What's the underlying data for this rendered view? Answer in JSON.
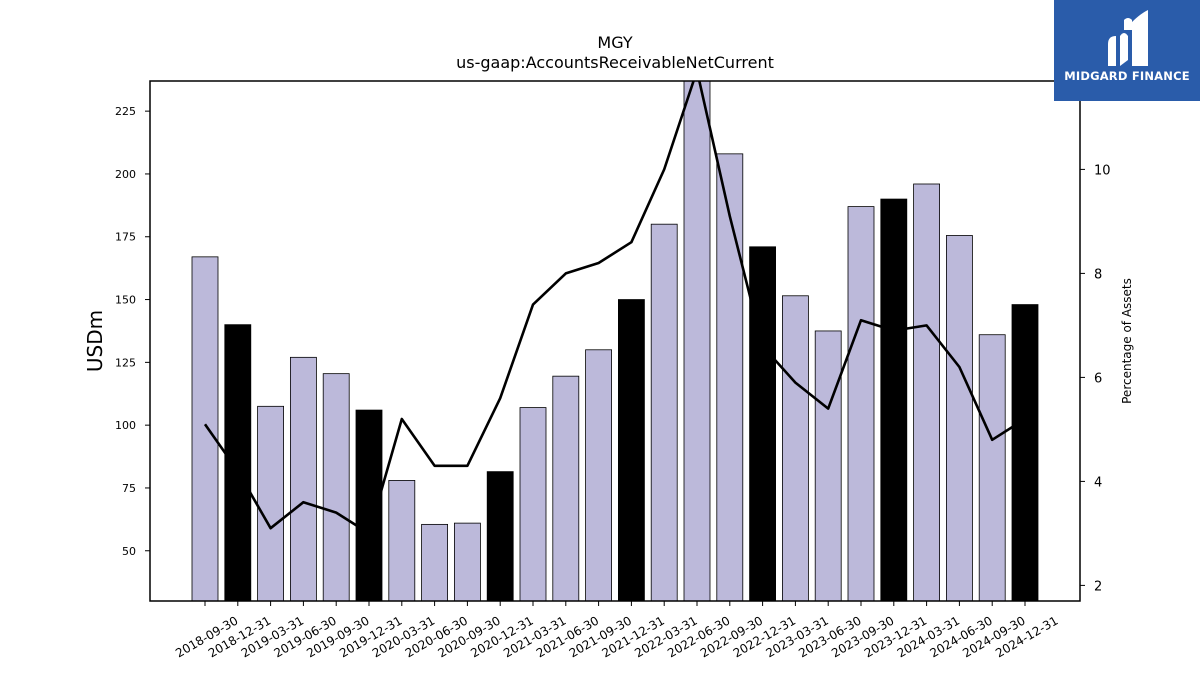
{
  "brand": {
    "name": "MIDGARD FINANCE",
    "logo_icon": "midgard-m-logo-icon",
    "background": "#2a5caa"
  },
  "chart_data": {
    "type": "bar",
    "title": "MGY",
    "subtitle": "us-gaap:AccountsReceivableNetCurrent",
    "ylabel": "USDm",
    "y2label": "Percentage of Assets",
    "ylim": [
      30,
      237
    ],
    "y2lim": [
      1.7,
      11.7
    ],
    "yticks": [
      50,
      75,
      100,
      125,
      150,
      175,
      200,
      225
    ],
    "y2ticks": [
      2,
      4,
      6,
      8,
      10
    ],
    "grid": false,
    "colors": {
      "quarter_bar": "#bcb9da",
      "year_end_bar": "#000000",
      "line": "#000000"
    },
    "categories": [
      "2018-09-30",
      "2018-12-31",
      "2019-03-31",
      "2019-06-30",
      "2019-09-30",
      "2019-12-31",
      "2020-03-31",
      "2020-06-30",
      "2020-09-30",
      "2020-12-31",
      "2021-03-31",
      "2021-06-30",
      "2021-09-30",
      "2021-12-31",
      "2022-03-31",
      "2022-06-30",
      "2022-09-30",
      "2022-12-31",
      "2023-03-31",
      "2023-06-30",
      "2023-09-30",
      "2023-12-31",
      "2024-03-31",
      "2024-06-30",
      "2024-09-30",
      "2024-12-31"
    ],
    "series": [
      {
        "type": "bar",
        "values": [
          167,
          140,
          107.5,
          127,
          120.5,
          106,
          78,
          60.5,
          61,
          81.5,
          107,
          119.5,
          130,
          150,
          180,
          240,
          208,
          171,
          151.5,
          137.5,
          187,
          190,
          196,
          175.5,
          136,
          148
        ]
      },
      {
        "type": "line",
        "axis": "right",
        "values": [
          5.1,
          4.2,
          3.1,
          3.6,
          3.4,
          3.0,
          5.2,
          4.3,
          4.3,
          5.6,
          7.4,
          8.0,
          8.2,
          8.6,
          10.0,
          11.9,
          9.1,
          6.6,
          5.9,
          5.4,
          7.1,
          6.9,
          7.0,
          6.2,
          4.8,
          5.2
        ]
      }
    ]
  }
}
